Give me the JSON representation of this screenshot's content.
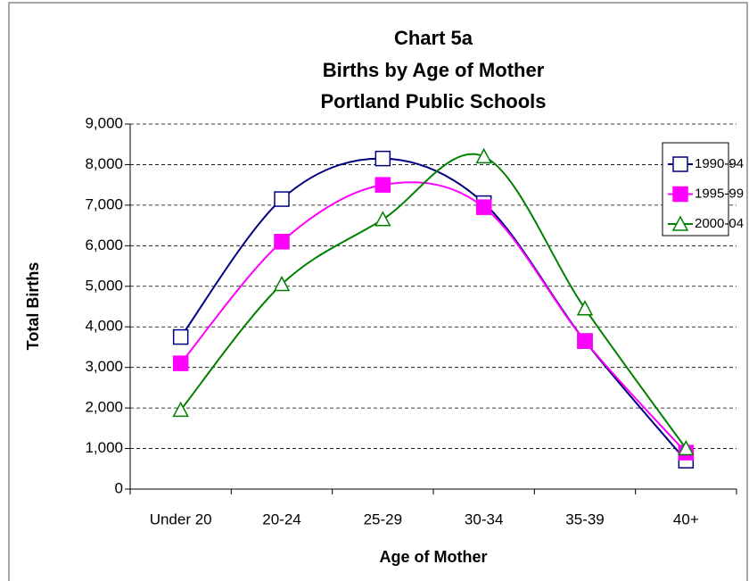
{
  "chart_data": {
    "type": "line",
    "title": [
      "Chart 5a",
      "Births by Age of Mother",
      "Portland Public Schools"
    ],
    "x_label": "Age of Mother",
    "y_label": "Total Births",
    "categories": [
      "Under 20",
      "20-24",
      "25-29",
      "30-34",
      "35-39",
      "40+"
    ],
    "series": [
      {
        "name": "1990-94",
        "color": "#000080",
        "marker": "square-open",
        "values": [
          3750,
          7150,
          8150,
          7050,
          3650,
          700
        ]
      },
      {
        "name": "1995-99",
        "color": "#ff00ff",
        "marker": "square-filled",
        "values": [
          3100,
          6100,
          7500,
          6950,
          3650,
          900
        ]
      },
      {
        "name": "2000-04",
        "color": "#008000",
        "marker": "triangle-open",
        "values": [
          1950,
          5050,
          6650,
          8200,
          4450,
          1000
        ]
      }
    ],
    "ylim": [
      0,
      9000
    ],
    "yticks": [
      0,
      {
        "value": 1000,
        "label": "1,000"
      },
      {
        "value": 2000,
        "label": "2,000"
      },
      {
        "value": 3000,
        "label": "3,000"
      },
      {
        "value": 4000,
        "label": "4,000"
      },
      {
        "value": 5000,
        "label": "5,000"
      },
      {
        "value": 6000,
        "label": "6,000"
      },
      {
        "value": 7000,
        "label": "7,000"
      },
      {
        "value": 8000,
        "label": "8,000"
      },
      {
        "value": 9000,
        "label": "9,000"
      }
    ],
    "grid": true,
    "smooth": true,
    "legend": "upper right"
  }
}
